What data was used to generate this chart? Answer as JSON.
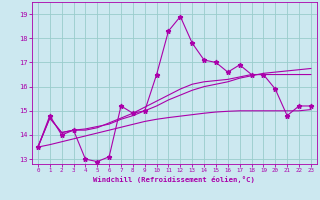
{
  "xlabel": "Windchill (Refroidissement éolien,°C)",
  "ylabel": "",
  "xlim": [
    -0.5,
    23.5
  ],
  "ylim": [
    12.8,
    19.5
  ],
  "yticks": [
    13,
    14,
    15,
    16,
    17,
    18,
    19
  ],
  "xticks": [
    0,
    1,
    2,
    3,
    4,
    5,
    6,
    7,
    8,
    9,
    10,
    11,
    12,
    13,
    14,
    15,
    16,
    17,
    18,
    19,
    20,
    21,
    22,
    23
  ],
  "bg_color": "#cce8f0",
  "grid_color": "#99cccc",
  "line_color": "#aa00aa",
  "line1_x": [
    0,
    1,
    2,
    3,
    4,
    5,
    6,
    7,
    8,
    9,
    10,
    11,
    12,
    13,
    14,
    15,
    16,
    17,
    18,
    19,
    20,
    21,
    22,
    23
  ],
  "line1_y": [
    13.5,
    14.8,
    14.0,
    14.2,
    13.0,
    12.9,
    13.1,
    15.2,
    14.9,
    15.0,
    16.5,
    18.3,
    18.9,
    17.8,
    17.1,
    17.0,
    16.6,
    16.9,
    16.5,
    16.5,
    15.9,
    14.8,
    15.2,
    15.2
  ],
  "line2_x": [
    0,
    1,
    2,
    3,
    4,
    5,
    6,
    7,
    8,
    9,
    10,
    11,
    12,
    13,
    14,
    15,
    16,
    17,
    18,
    19,
    20,
    21,
    22,
    23
  ],
  "line2_y": [
    13.5,
    14.7,
    14.1,
    14.2,
    14.25,
    14.35,
    14.45,
    14.65,
    14.8,
    15.0,
    15.2,
    15.45,
    15.65,
    15.85,
    16.0,
    16.1,
    16.2,
    16.35,
    16.45,
    16.55,
    16.6,
    16.65,
    16.7,
    16.75
  ],
  "line3_x": [
    0,
    1,
    2,
    3,
    4,
    5,
    6,
    7,
    8,
    9,
    10,
    11,
    12,
    13,
    14,
    15,
    16,
    17,
    18,
    19,
    20,
    21,
    22,
    23
  ],
  "line3_y": [
    13.5,
    14.7,
    14.1,
    14.2,
    14.2,
    14.3,
    14.5,
    14.7,
    14.9,
    15.15,
    15.4,
    15.65,
    15.9,
    16.1,
    16.2,
    16.25,
    16.3,
    16.4,
    16.5,
    16.5,
    16.5,
    16.5,
    16.5,
    16.5
  ],
  "line4_x": [
    0,
    1,
    2,
    3,
    4,
    5,
    6,
    7,
    8,
    9,
    10,
    11,
    12,
    13,
    14,
    15,
    16,
    17,
    18,
    19,
    20,
    21,
    22,
    23
  ],
  "line4_y": [
    13.5,
    13.6,
    13.72,
    13.84,
    13.96,
    14.08,
    14.2,
    14.32,
    14.44,
    14.56,
    14.65,
    14.72,
    14.78,
    14.84,
    14.9,
    14.95,
    14.98,
    15.0,
    15.0,
    15.0,
    15.0,
    15.0,
    15.0,
    15.05
  ]
}
